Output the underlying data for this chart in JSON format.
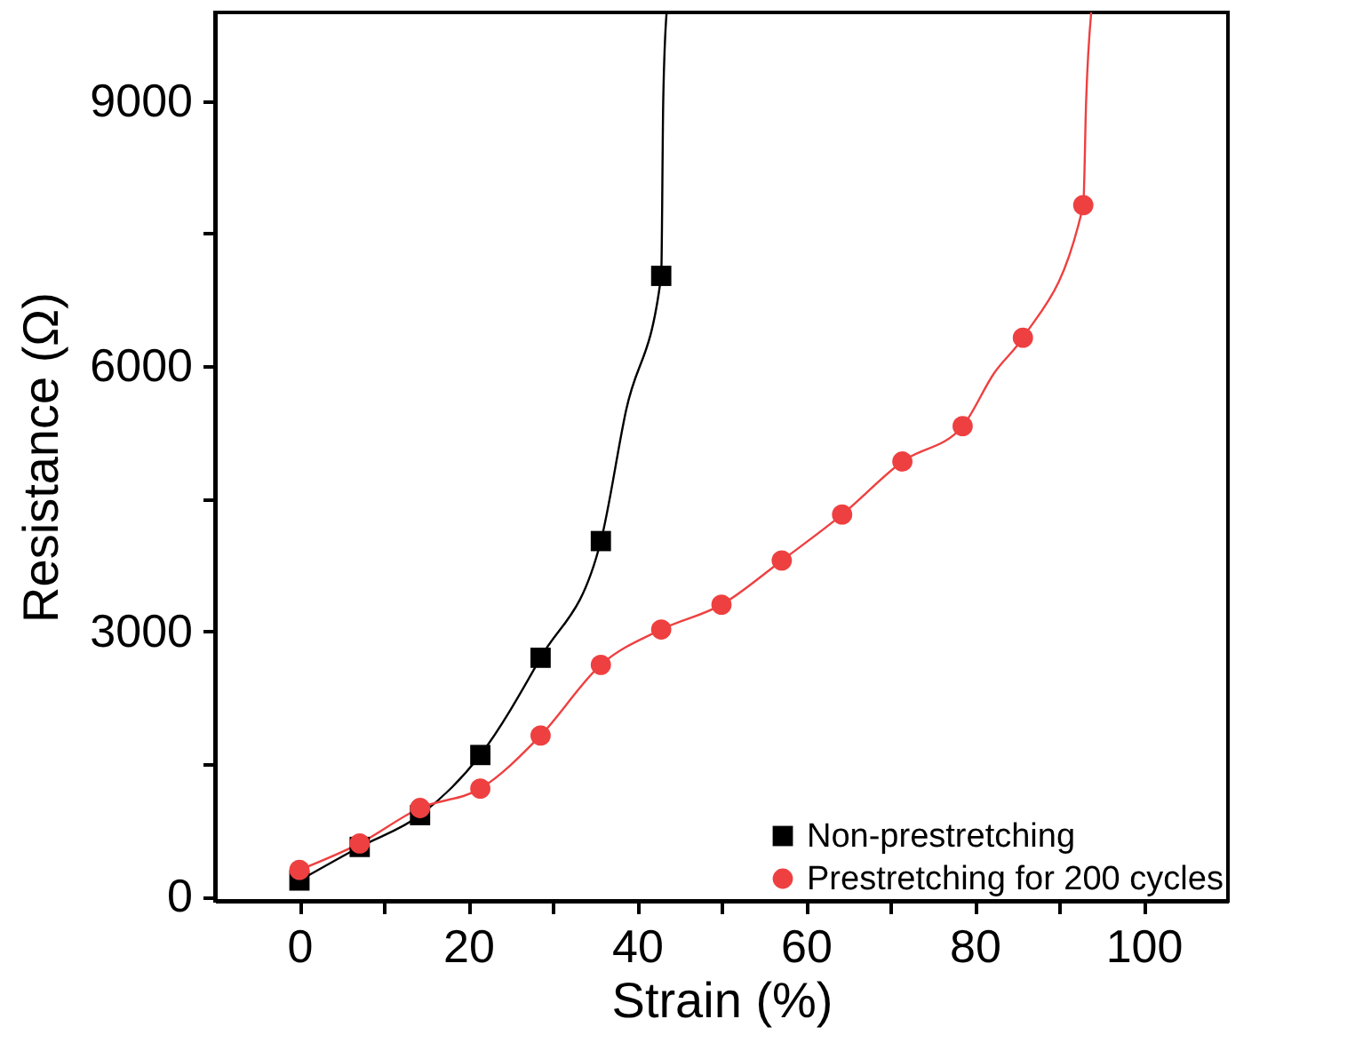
{
  "chart_data": {
    "type": "scatter",
    "xlabel": "Strain (%)",
    "ylabel": "Resistance (Ω)",
    "xlim": [
      -10,
      110
    ],
    "ylim": [
      -50,
      10000
    ],
    "xticks": [
      0,
      {
        "value": 10,
        "label": null
      },
      20,
      {
        "value": 30,
        "label": null
      },
      40,
      {
        "value": 50,
        "label": null
      },
      60,
      {
        "value": 70,
        "label": null
      },
      80,
      {
        "value": 90,
        "label": null
      },
      100
    ],
    "yticks": [
      0,
      {
        "value": 1500,
        "label": null
      },
      3000,
      {
        "value": 4500,
        "label": null
      },
      6000,
      {
        "value": 7500,
        "label": null
      },
      9000
    ],
    "grid": false,
    "legend": "bottom right",
    "series": [
      {
        "type": "line",
        "color": "#000000",
        "marker": "none",
        "line_style": "solid",
        "x": [
          0,
          7.14,
          14.29,
          21.43,
          28.57,
          35.71,
          38.7,
          42.86,
          43.1,
          43.5
        ],
        "values": [
          180,
          560,
          920,
          1600,
          2700,
          4020,
          5500,
          7020,
          9000,
          10000
        ]
      },
      {
        "type": "line",
        "color": "#ee4040",
        "marker": "none",
        "line_style": "solid",
        "x": [
          0,
          7.14,
          14.29,
          21.43,
          28.57,
          35.71,
          42.86,
          50,
          57.14,
          64.29,
          71.43,
          78.57,
          82.3,
          85.71,
          92.86,
          93.2,
          93.8
        ],
        "values": [
          300,
          600,
          1000,
          1220,
          1820,
          2620,
          3020,
          3300,
          3800,
          4320,
          4920,
          5320,
          5920,
          6320,
          7820,
          9000,
          10000
        ]
      },
      {
        "name": "Non-prestretching",
        "color": "#000000",
        "marker": "square",
        "x": [
          0,
          7.14,
          14.29,
          21.43,
          28.57,
          35.71,
          42.86
        ],
        "values": [
          180,
          560,
          920,
          1600,
          2700,
          4020,
          7020
        ]
      },
      {
        "name": "Prestretching for 200 cycles",
        "color": "#ee4040",
        "marker": "circle",
        "x": [
          0,
          7.14,
          14.29,
          21.43,
          28.57,
          35.71,
          42.86,
          50,
          57.14,
          64.29,
          71.43,
          78.57,
          85.71,
          92.86
        ],
        "values": [
          300,
          600,
          1000,
          1220,
          1820,
          2620,
          3020,
          3300,
          3800,
          4320,
          4920,
          5320,
          6320,
          7820
        ]
      }
    ]
  }
}
